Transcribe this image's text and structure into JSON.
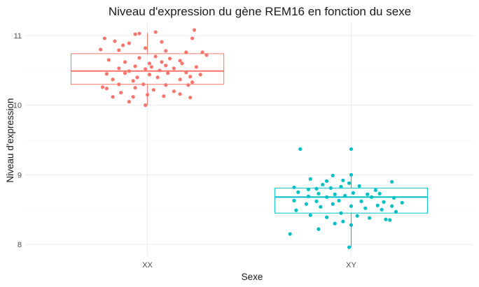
{
  "chart_data": {
    "type": "boxplot",
    "title": "Niveau d'expression du gène REM16 en fonction du sexe",
    "xlabel": "Sexe",
    "ylabel": "Niveau d'expression",
    "categories": [
      "XX",
      "XY"
    ],
    "ylim": [
      7.85,
      11.2
    ],
    "yticks": [
      8,
      9,
      10,
      11
    ],
    "grid": true,
    "legend": "none",
    "series": [
      {
        "category": "XX",
        "color": "#F8766D",
        "box": {
          "min": 10.0,
          "q1": 10.3,
          "median": 10.49,
          "q3": 10.74,
          "max": 11.04
        },
        "points": [
          [
            0.79,
            10.96
          ],
          [
            0.84,
            10.92
          ],
          [
            0.88,
            10.86
          ],
          [
            0.94,
            11.02
          ],
          [
            0.96,
            11.03
          ],
          [
            1.04,
            11.05
          ],
          [
            1.23,
            11.08
          ],
          [
            0.91,
            10.89
          ],
          [
            1.07,
            10.91
          ],
          [
            1.22,
            10.96
          ],
          [
            0.77,
            10.8
          ],
          [
            0.86,
            10.79
          ],
          [
            0.99,
            10.82
          ],
          [
            1.09,
            10.78
          ],
          [
            1.19,
            10.76
          ],
          [
            1.27,
            10.76
          ],
          [
            1.29,
            10.72
          ],
          [
            0.96,
            10.68
          ],
          [
            1.04,
            10.7
          ],
          [
            1.11,
            10.67
          ],
          [
            0.81,
            10.65
          ],
          [
            0.89,
            10.62
          ],
          [
            1.01,
            10.6
          ],
          [
            1.07,
            10.62
          ],
          [
            1.16,
            10.64
          ],
          [
            1.17,
            10.6
          ],
          [
            0.94,
            10.56
          ],
          [
            1.02,
            10.55
          ],
          [
            1.09,
            10.57
          ],
          [
            1.24,
            10.55
          ],
          [
            0.86,
            10.53
          ],
          [
            0.91,
            10.49
          ],
          [
            0.99,
            10.52
          ],
          [
            1.06,
            10.5
          ],
          [
            1.13,
            10.53
          ],
          [
            1.19,
            10.47
          ],
          [
            0.8,
            10.45
          ],
          [
            0.89,
            10.46
          ],
          [
            1.01,
            10.44
          ],
          [
            1.1,
            10.46
          ],
          [
            1.26,
            10.44
          ],
          [
            0.95,
            10.4
          ],
          [
            1.05,
            10.4
          ],
          [
            1.21,
            10.41
          ],
          [
            0.83,
            10.37
          ],
          [
            0.93,
            10.35
          ],
          [
            1.16,
            10.37
          ],
          [
            1.22,
            10.33
          ],
          [
            0.86,
            10.3
          ],
          [
            0.98,
            10.3
          ],
          [
            1.09,
            10.29
          ],
          [
            1.2,
            10.29
          ],
          [
            0.78,
            10.26
          ],
          [
            0.8,
            10.24
          ],
          [
            0.94,
            10.25
          ],
          [
            1.03,
            10.22
          ],
          [
            1.13,
            10.2
          ],
          [
            0.87,
            10.18
          ],
          [
            1.0,
            10.15
          ],
          [
            1.16,
            10.16
          ],
          [
            0.83,
            10.12
          ],
          [
            0.93,
            10.12
          ],
          [
            1.08,
            10.13
          ],
          [
            1.21,
            10.11
          ],
          [
            0.91,
            10.05
          ],
          [
            0.99,
            10.0
          ]
        ]
      },
      {
        "category": "XY",
        "color": "#00BFC4",
        "box": {
          "min": 7.96,
          "q1": 8.45,
          "median": 8.68,
          "q3": 8.81,
          "max": 9.0
        },
        "points": [
          [
            1.75,
            9.37
          ],
          [
            2.0,
            9.37
          ],
          [
            1.8,
            8.94
          ],
          [
            1.91,
            8.99
          ],
          [
            2.0,
            9.0
          ],
          [
            1.88,
            8.91
          ],
          [
            1.96,
            8.92
          ],
          [
            1.99,
            8.88
          ],
          [
            1.86,
            8.86
          ],
          [
            1.95,
            8.83
          ],
          [
            2.04,
            8.84
          ],
          [
            2.2,
            8.9
          ],
          [
            1.72,
            8.82
          ],
          [
            1.79,
            8.79
          ],
          [
            1.83,
            8.8
          ],
          [
            1.9,
            8.81
          ],
          [
            2.12,
            8.78
          ],
          [
            1.74,
            8.75
          ],
          [
            1.84,
            8.73
          ],
          [
            1.92,
            8.72
          ],
          [
            2.01,
            8.74
          ],
          [
            2.08,
            8.72
          ],
          [
            2.14,
            8.73
          ],
          [
            1.79,
            8.69
          ],
          [
            1.88,
            8.68
          ],
          [
            1.97,
            8.7
          ],
          [
            2.1,
            8.68
          ],
          [
            2.21,
            8.67
          ],
          [
            2.25,
            8.6
          ],
          [
            1.72,
            8.63
          ],
          [
            1.83,
            8.62
          ],
          [
            1.94,
            8.63
          ],
          [
            2.05,
            8.62
          ],
          [
            2.16,
            8.61
          ],
          [
            1.78,
            8.58
          ],
          [
            1.91,
            8.58
          ],
          [
            2.0,
            8.55
          ],
          [
            2.13,
            8.56
          ],
          [
            2.2,
            8.55
          ],
          [
            1.85,
            8.54
          ],
          [
            2.07,
            8.52
          ],
          [
            2.15,
            8.5
          ],
          [
            1.73,
            8.49
          ],
          [
            1.95,
            8.45
          ],
          [
            2.22,
            8.47
          ],
          [
            1.8,
            8.42
          ],
          [
            2.03,
            8.41
          ],
          [
            1.88,
            8.39
          ],
          [
            2.09,
            8.38
          ],
          [
            2.17,
            8.36
          ],
          [
            2.19,
            8.35
          ],
          [
            1.96,
            8.33
          ],
          [
            1.92,
            8.3
          ],
          [
            2.0,
            8.28
          ],
          [
            1.84,
            8.22
          ],
          [
            1.7,
            8.15
          ],
          [
            1.99,
            7.96
          ]
        ]
      }
    ]
  }
}
